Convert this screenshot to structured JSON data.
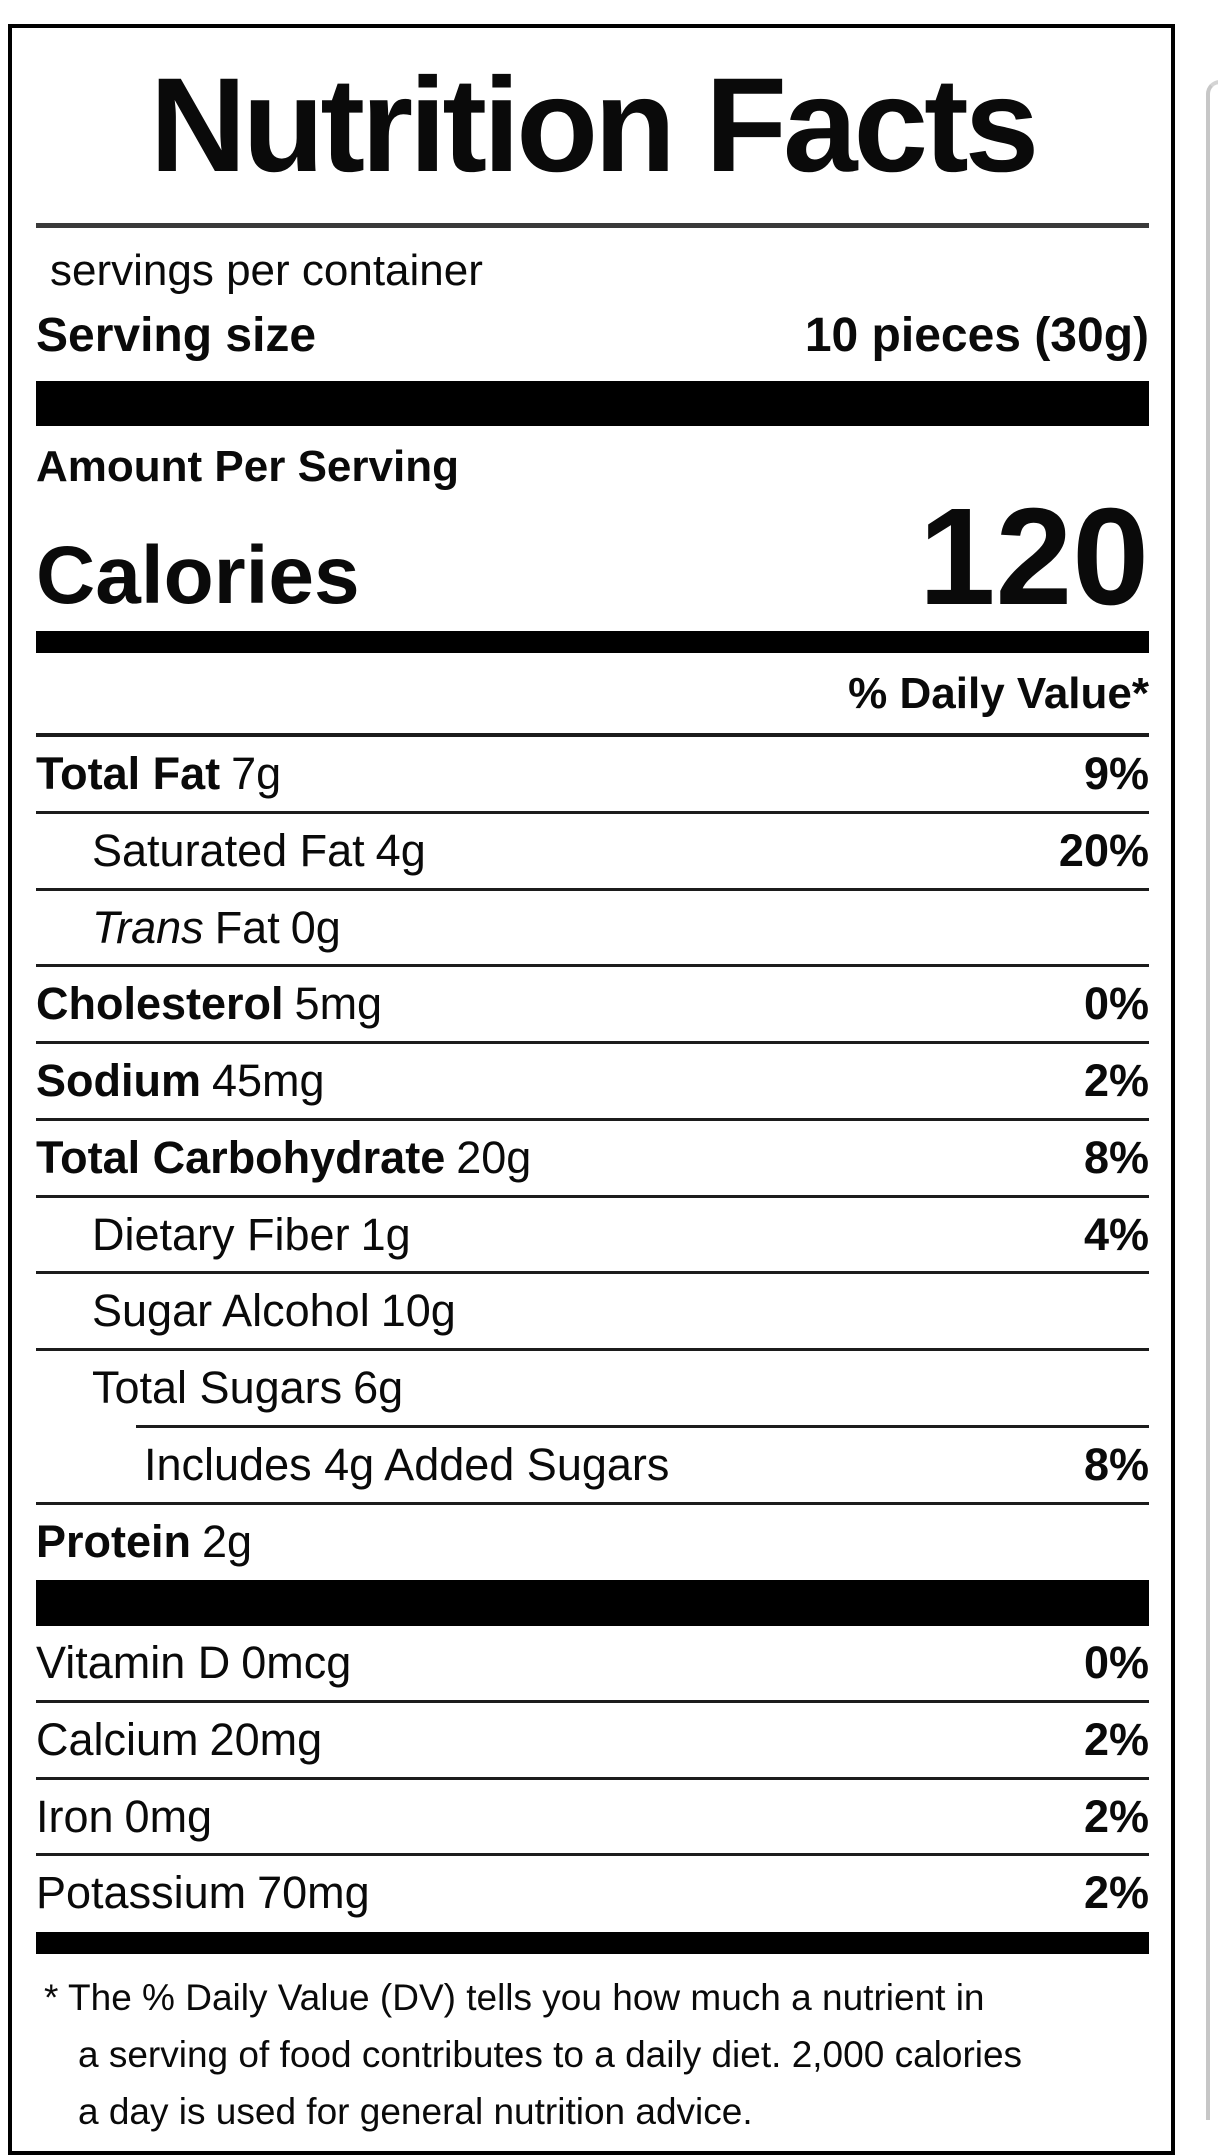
{
  "label": {
    "title": "Nutrition Facts",
    "servings_per_container": "servings per container",
    "serving_size": {
      "label": "Serving size",
      "value": "10 pieces (30g)"
    },
    "amount_per_serving": "Amount Per Serving",
    "calories": {
      "label": "Calories",
      "value": "120"
    },
    "daily_value_header": "% Daily Value*",
    "nutrients": [
      {
        "name": "Total Fat",
        "amount": "7g",
        "percent": "9%"
      },
      {
        "name": "Saturated Fat",
        "amount": "4g",
        "percent": "20%"
      },
      {
        "name_italic": "Trans",
        "name": "Fat",
        "amount": "0g",
        "percent": ""
      },
      {
        "name": "Cholesterol",
        "amount": "5mg",
        "percent": "0%"
      },
      {
        "name": "Sodium",
        "amount": "45mg",
        "percent": "2%"
      },
      {
        "name": "Total Carbohydrate",
        "amount": "20g",
        "percent": "8%"
      },
      {
        "name": "Dietary Fiber",
        "amount": "1g",
        "percent": "4%"
      },
      {
        "name": "Sugar Alcohol",
        "amount": "10g",
        "percent": ""
      },
      {
        "name": "Total Sugars",
        "amount": "6g",
        "percent": ""
      },
      {
        "name": "Includes 4g Added Sugars",
        "amount": "",
        "percent": "8%"
      },
      {
        "name": "Protein",
        "amount": "2g",
        "percent": ""
      }
    ],
    "vitamins": [
      {
        "name": "Vitamin D",
        "amount": "0mcg",
        "percent": "0%"
      },
      {
        "name": "Calcium",
        "amount": "20mg",
        "percent": "2%"
      },
      {
        "name": "Iron",
        "amount": "0mg",
        "percent": "2%"
      },
      {
        "name": "Potassium",
        "amount": "70mg",
        "percent": "2%"
      }
    ],
    "footnote_lines": [
      "* The % Daily Value (DV) tells you how much a nutrient in",
      "a serving of food contributes to a daily diet. 2,000 calories",
      "a day is used for general nutrition advice."
    ],
    "colors": {
      "text": "#0a0a0a",
      "bar": "#000000",
      "border": "#000000",
      "background": "#ffffff"
    }
  }
}
